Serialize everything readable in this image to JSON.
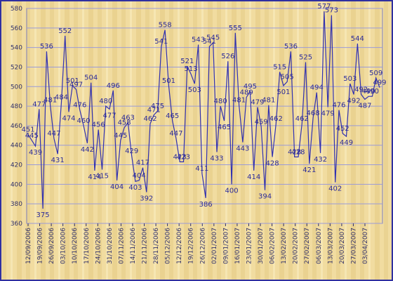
{
  "chart_data": {
    "type": "line",
    "values": [
      451,
      445,
      439,
      477,
      375,
      536,
      481,
      447,
      431,
      484,
      552,
      474,
      501,
      497,
      476,
      460,
      442,
      504,
      414,
      456,
      415,
      480,
      477,
      496,
      404,
      445,
      458,
      463,
      429,
      403,
      404,
      417,
      392,
      462,
      471,
      475,
      541,
      558,
      501,
      465,
      447,
      423,
      423,
      521,
      513,
      503,
      543,
      411,
      386,
      541,
      545,
      433,
      480,
      465,
      526,
      400,
      555,
      481,
      443,
      489,
      495,
      414,
      479,
      459,
      394,
      481,
      428,
      462,
      515,
      501,
      505,
      536,
      428,
      428,
      462,
      525,
      421,
      468,
      494,
      432,
      577,
      479,
      573,
      402,
      476,
      452,
      449,
      503,
      492,
      544,
      492,
      487,
      490,
      490,
      509,
      499
    ],
    "xtick_labels": [
      "12/09/2006",
      "19/09/2006",
      "26/09/2006",
      "03/10/2006",
      "10/10/2006",
      "17/10/2006",
      "24/10/2006",
      "31/10/2006",
      "07/11/2006",
      "14/11/2006",
      "21/11/2006",
      "28/11/2006",
      "05/12/2006",
      "12/12/2006",
      "19/12/2006",
      "26/12/2006",
      "02/01/2007",
      "09/01/2007",
      "16/01/2007",
      "23/01/2007",
      "30/01/2007",
      "06/02/2007",
      "13/02/2007",
      "20/02/2007",
      "27/02/2007",
      "06/03/2007",
      "13/03/2007",
      "20/03/2007",
      "27/03/2007",
      "03/04/2007"
    ],
    "color": "#3030b0",
    "ylim": [
      360,
      580
    ],
    "yticks": [
      360,
      380,
      400,
      420,
      440,
      460,
      480,
      500,
      520,
      540,
      560,
      580
    ],
    "grid": true
  }
}
